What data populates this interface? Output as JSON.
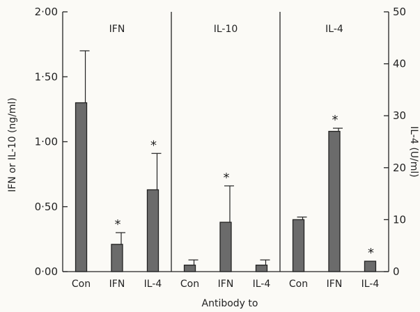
{
  "chart_data": {
    "type": "bar",
    "title": "",
    "xlabel": "Antibody to",
    "ylabel_left": "IFN or IL-10 (ng/ml)",
    "ylabel_right": "IL-4 (U/ml)",
    "ylim_left": [
      0,
      2.0
    ],
    "ylim_right": [
      0,
      50
    ],
    "yticks_left": [
      "0·00",
      "0·50",
      "1·00",
      "1·50",
      "2·00"
    ],
    "yticks_right": [
      "0",
      "10",
      "20",
      "30",
      "40",
      "50"
    ],
    "grid": false,
    "colors": {
      "bar": "#6b6b6b",
      "ink": "#222222"
    },
    "panels": [
      {
        "title": "IFN",
        "axis": "left",
        "categories": [
          "Con",
          "IFN",
          "IL-4"
        ],
        "values": [
          1.3,
          0.21,
          0.63
        ],
        "errors": [
          0.4,
          0.09,
          0.28
        ],
        "significant": [
          false,
          true,
          true
        ]
      },
      {
        "title": "IL-10",
        "axis": "left",
        "categories": [
          "Con",
          "IFN",
          "IL-4"
        ],
        "values": [
          0.05,
          0.38,
          0.05
        ],
        "errors": [
          0.04,
          0.28,
          0.04
        ],
        "significant": [
          false,
          true,
          false
        ]
      },
      {
        "title": "IL-4",
        "axis": "right",
        "categories": [
          "Con",
          "IFN",
          "IL-4"
        ],
        "values": [
          10.0,
          27.0,
          2.0
        ],
        "errors": [
          0.5,
          0.6,
          0.0
        ],
        "significant": [
          false,
          true,
          true
        ]
      }
    ],
    "significance_marker": "*"
  }
}
